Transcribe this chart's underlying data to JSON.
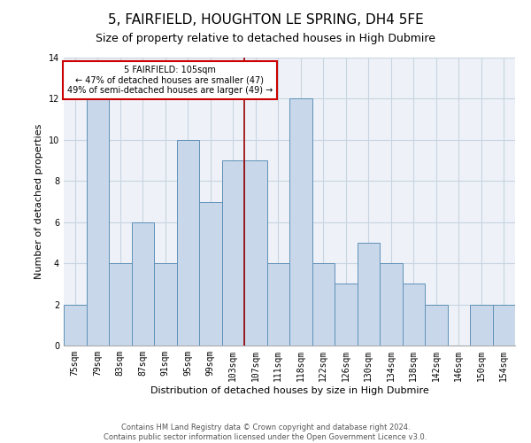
{
  "title": "5, FAIRFIELD, HOUGHTON LE SPRING, DH4 5FE",
  "subtitle": "Size of property relative to detached houses in High Dubmire",
  "xlabel": "Distribution of detached houses by size in High Dubmire",
  "ylabel": "Number of detached properties",
  "footer_line1": "Contains HM Land Registry data © Crown copyright and database right 2024.",
  "footer_line2": "Contains public sector information licensed under the Open Government Licence v3.0.",
  "bins": [
    "75sqm",
    "79sqm",
    "83sqm",
    "87sqm",
    "91sqm",
    "95sqm",
    "99sqm",
    "103sqm",
    "107sqm",
    "111sqm",
    "118sqm",
    "122sqm",
    "126sqm",
    "130sqm",
    "134sqm",
    "138sqm",
    "142sqm",
    "146sqm",
    "150sqm",
    "154sqm"
  ],
  "values": [
    2,
    12,
    4,
    6,
    4,
    10,
    7,
    9,
    9,
    4,
    12,
    4,
    3,
    5,
    4,
    3,
    2,
    0,
    2,
    2
  ],
  "bar_color": "#c8d8ea",
  "bar_edge_color": "#6090b8",
  "property_label": "5 FAIRFIELD: 105sqm",
  "pct_smaller": 47,
  "n_smaller": 47,
  "pct_larger": 49,
  "n_larger": 49,
  "vline_color": "#990000",
  "box_edge_color": "#cc0000",
  "ylim": [
    0,
    14
  ],
  "yticks": [
    0,
    2,
    4,
    6,
    8,
    10,
    12,
    14
  ],
  "grid_color": "#c8d4e0",
  "bg_color": "#eef2f8",
  "title_fontsize": 11,
  "subtitle_fontsize": 9,
  "axis_label_fontsize": 8,
  "tick_fontsize": 7,
  "footer_fontsize": 6
}
